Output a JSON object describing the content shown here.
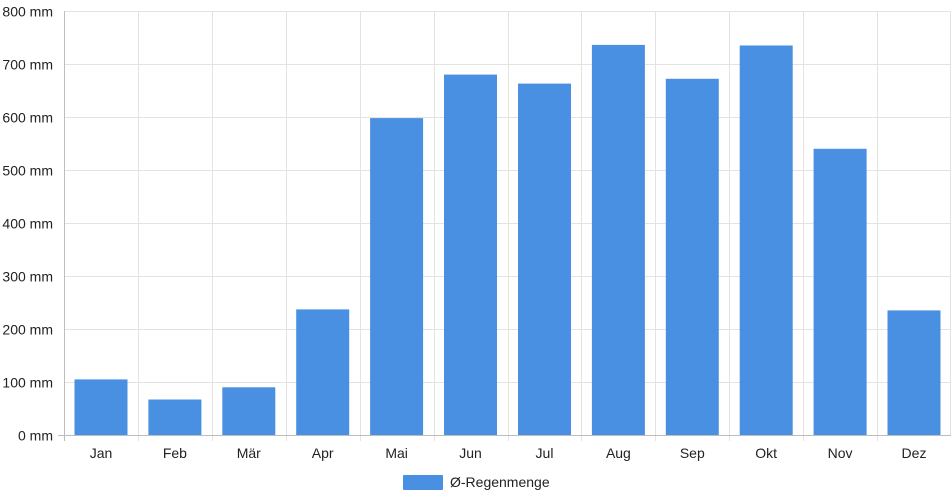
{
  "chart_data": {
    "type": "bar",
    "categories": [
      "Jan",
      "Feb",
      "Mär",
      "Apr",
      "Mai",
      "Jun",
      "Jul",
      "Aug",
      "Sep",
      "Okt",
      "Nov",
      "Dez"
    ],
    "series": [
      {
        "name": "Ø-Regenmenge",
        "values": [
          105,
          67,
          90,
          237,
          598,
          680,
          663,
          736,
          672,
          735,
          540,
          235
        ],
        "color": "#4a90e2"
      }
    ],
    "ylim": [
      0,
      800
    ],
    "yticks": [
      0,
      100,
      200,
      300,
      400,
      500,
      600,
      700,
      800
    ],
    "yunit": " mm",
    "grid": true,
    "legend_placement": "bottom-center",
    "colors": {
      "grid": "#e3e3e3",
      "axis": "#bdbdbd",
      "bar": "#4a90e2",
      "text": "#222222"
    }
  }
}
